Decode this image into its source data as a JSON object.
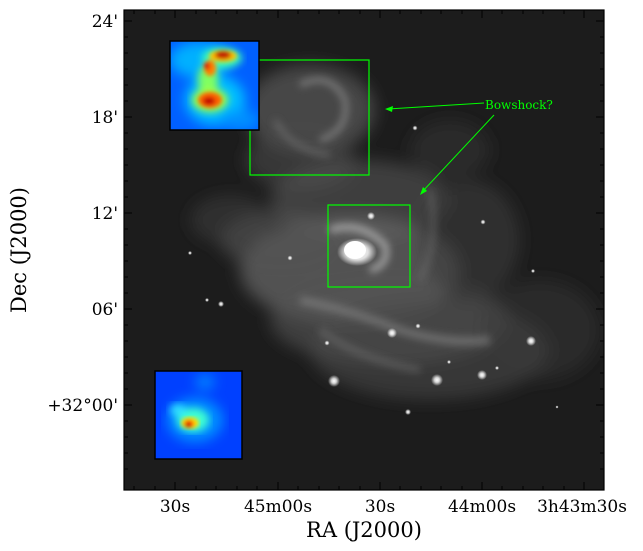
{
  "figure": {
    "xlabel": "RA (J2000)",
    "ylabel": "Dec (J2000)",
    "x_ticks": [
      "30s",
      "45m00s",
      "30s",
      "44m00s",
      "3h43m30s"
    ],
    "y_ticks": [
      "24'",
      "18'",
      "12'",
      "06'",
      "+32°00'"
    ],
    "annotation": "Bowshock?",
    "colors": {
      "annotation": "#00ff00",
      "region_box": "#00ff00",
      "frame": "#000000"
    }
  }
}
